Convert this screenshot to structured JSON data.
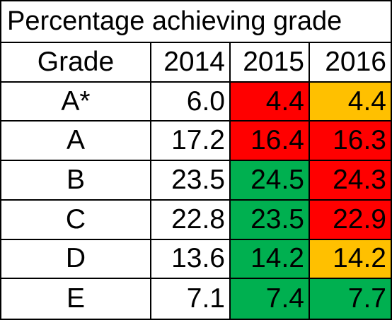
{
  "table": {
    "title": "Percentage achieving grade",
    "header": {
      "grade_label": "Grade",
      "years": [
        "2014",
        "2015",
        "2016"
      ]
    },
    "rows": [
      {
        "grade": "A*",
        "values": [
          "6.0",
          "4.4",
          "4.4"
        ],
        "colors": [
          "#ffffff",
          "#ff0000",
          "#ffc000"
        ]
      },
      {
        "grade": "A",
        "values": [
          "17.2",
          "16.4",
          "16.3"
        ],
        "colors": [
          "#ffffff",
          "#ff0000",
          "#ff0000"
        ]
      },
      {
        "grade": "B",
        "values": [
          "23.5",
          "24.5",
          "24.3"
        ],
        "colors": [
          "#ffffff",
          "#00b050",
          "#ff0000"
        ]
      },
      {
        "grade": "C",
        "values": [
          "22.8",
          "23.5",
          "22.9"
        ],
        "colors": [
          "#ffffff",
          "#00b050",
          "#ff0000"
        ]
      },
      {
        "grade": "D",
        "values": [
          "13.6",
          "14.2",
          "14.2"
        ],
        "colors": [
          "#ffffff",
          "#00b050",
          "#ffc000"
        ]
      },
      {
        "grade": "E",
        "values": [
          "7.1",
          "7.4",
          "7.7"
        ],
        "colors": [
          "#ffffff",
          "#00b050",
          "#00b050"
        ]
      }
    ]
  }
}
